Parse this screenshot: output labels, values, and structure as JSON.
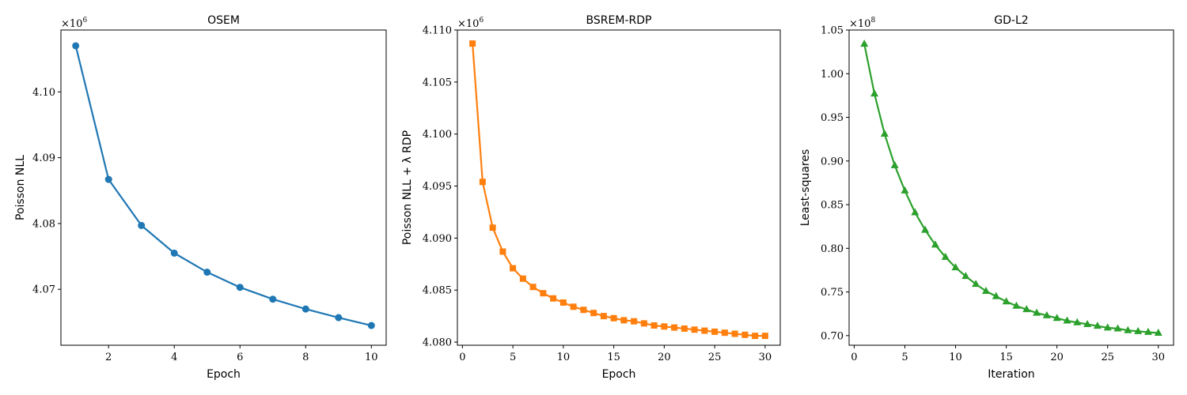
{
  "chart_data": [
    {
      "type": "line",
      "title": "OSEM",
      "xlabel": "Epoch",
      "ylabel": "Poisson NLL",
      "offset_label": "×10",
      "offset_exponent": "6",
      "xlim": [
        0.55,
        10.45
      ],
      "ylim": [
        4.0615,
        4.1094
      ],
      "xticks": [
        2,
        4,
        6,
        8,
        10
      ],
      "xtick_labels": [
        "2",
        "4",
        "6",
        "8",
        "10"
      ],
      "yticks": [
        4.07,
        4.08,
        4.09,
        4.1
      ],
      "ytick_labels": [
        "4.07",
        "4.08",
        "4.09",
        "4.10"
      ],
      "series": [
        {
          "color": "#1f77b4",
          "marker": "circle",
          "x": [
            1,
            2,
            3,
            4,
            5,
            6,
            7,
            8,
            9,
            10
          ],
          "y": [
            4.107,
            4.0867,
            4.0797,
            4.0755,
            4.0726,
            4.0703,
            4.0685,
            4.067,
            4.0657,
            4.0645
          ]
        }
      ]
    },
    {
      "type": "line",
      "title": "BSREM-RDP",
      "xlabel": "Epoch",
      "ylabel": "Poisson NLL + λ RDP",
      "offset_label": "×10",
      "offset_exponent": "6",
      "xlim": [
        -0.5,
        31.5
      ],
      "ylim": [
        4.0797,
        4.11
      ],
      "xticks": [
        0,
        5,
        10,
        15,
        20,
        25,
        30
      ],
      "xtick_labels": [
        "0",
        "5",
        "10",
        "15",
        "20",
        "25",
        "30"
      ],
      "yticks": [
        4.08,
        4.085,
        4.09,
        4.095,
        4.1,
        4.105,
        4.11
      ],
      "ytick_labels": [
        "4.080",
        "4.085",
        "4.090",
        "4.095",
        "4.100",
        "4.105",
        "4.110"
      ],
      "series": [
        {
          "color": "#ff7f0e",
          "marker": "square",
          "x": [
            1,
            2,
            3,
            4,
            5,
            6,
            7,
            8,
            9,
            10,
            11,
            12,
            13,
            14,
            15,
            16,
            17,
            18,
            19,
            20,
            21,
            22,
            23,
            24,
            25,
            26,
            27,
            28,
            29,
            30
          ],
          "y": [
            4.1087,
            4.0954,
            4.091,
            4.0887,
            4.0871,
            4.0861,
            4.0853,
            4.0847,
            4.0842,
            4.0838,
            4.0834,
            4.0831,
            4.0828,
            4.0825,
            4.0823,
            4.0821,
            4.082,
            4.0818,
            4.0816,
            4.0815,
            4.0814,
            4.0813,
            4.0812,
            4.0811,
            4.081,
            4.0809,
            4.0808,
            4.0807,
            4.0806,
            4.0806
          ]
        }
      ]
    },
    {
      "type": "line",
      "title": "GD-L2",
      "xlabel": "Iteration",
      "ylabel": "Least-squares",
      "offset_label": "×10",
      "offset_exponent": "8",
      "xlim": [
        -0.5,
        31.5
      ],
      "ylim": [
        0.689,
        1.05
      ],
      "xticks": [
        0,
        5,
        10,
        15,
        20,
        25,
        30
      ],
      "xtick_labels": [
        "0",
        "5",
        "10",
        "15",
        "20",
        "25",
        "30"
      ],
      "yticks": [
        0.7,
        0.75,
        0.8,
        0.85,
        0.9,
        0.95,
        1.0,
        1.05
      ],
      "ytick_labels": [
        "0.70",
        "0.75",
        "0.80",
        "0.85",
        "0.90",
        "0.95",
        "1.00",
        "1.05"
      ],
      "series": [
        {
          "color": "#2ca02c",
          "marker": "triangle",
          "x": [
            1,
            2,
            3,
            4,
            5,
            6,
            7,
            8,
            9,
            10,
            11,
            12,
            13,
            14,
            15,
            16,
            17,
            18,
            19,
            20,
            21,
            22,
            23,
            24,
            25,
            26,
            27,
            28,
            29,
            30
          ],
          "y": [
            1.034,
            0.977,
            0.931,
            0.895,
            0.866,
            0.841,
            0.821,
            0.804,
            0.79,
            0.778,
            0.768,
            0.759,
            0.751,
            0.745,
            0.739,
            0.734,
            0.73,
            0.726,
            0.723,
            0.72,
            0.717,
            0.715,
            0.713,
            0.711,
            0.709,
            0.708,
            0.706,
            0.705,
            0.704,
            0.703
          ]
        }
      ]
    }
  ]
}
